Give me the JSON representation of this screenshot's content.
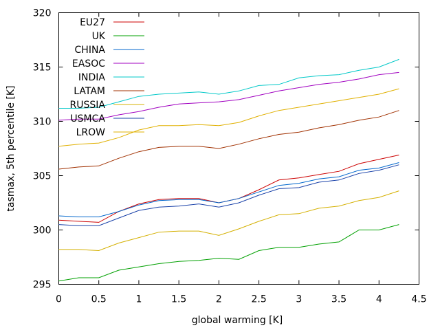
{
  "chart_data": {
    "type": "line",
    "xlabel": "global warming [K]",
    "ylabel": "tasmax, 5th percentile [K]",
    "xlim": [
      0,
      4.5
    ],
    "ylim": [
      295,
      320
    ],
    "xticks": [
      "0",
      "0.5",
      "1",
      "1.5",
      "2",
      "2.5",
      "3",
      "3.5",
      "4",
      "4.5"
    ],
    "yticks": [
      "295",
      "300",
      "305",
      "310",
      "315",
      "320"
    ],
    "grid": false,
    "legend_position": "top-left",
    "x": [
      0,
      0.25,
      0.5,
      0.75,
      1,
      1.25,
      1.5,
      1.75,
      2,
      2.25,
      2.5,
      2.75,
      3,
      3.25,
      3.5,
      3.75,
      4,
      4.25
    ],
    "series": [
      {
        "name": "EU27",
        "color": "#cc0000",
        "values": [
          300.9,
          300.8,
          300.7,
          301.7,
          302.4,
          302.8,
          302.9,
          302.9,
          302.5,
          302.9,
          303.7,
          304.6,
          304.8,
          305.1,
          305.4,
          306.1,
          306.5,
          306.9
        ]
      },
      {
        "name": "UK",
        "color": "#00a000",
        "values": [
          295.3,
          295.6,
          295.6,
          296.3,
          296.6,
          296.9,
          297.1,
          297.2,
          297.4,
          297.3,
          298.1,
          298.4,
          298.4,
          298.7,
          298.9,
          300.0,
          300.0,
          300.5
        ]
      },
      {
        "name": "CHINA",
        "color": "#0066cc",
        "values": [
          301.3,
          301.2,
          301.2,
          301.7,
          302.3,
          302.7,
          302.8,
          302.8,
          302.5,
          302.9,
          303.5,
          304.1,
          304.3,
          304.7,
          304.9,
          305.5,
          305.7,
          306.2
        ]
      },
      {
        "name": "EASOC",
        "color": "#a000c0",
        "values": [
          310.1,
          310.2,
          310.2,
          310.6,
          310.9,
          311.3,
          311.6,
          311.7,
          311.8,
          312.0,
          312.4,
          312.8,
          313.1,
          313.4,
          313.6,
          313.9,
          314.3,
          314.5
        ]
      },
      {
        "name": "INDIA",
        "color": "#00c8c8",
        "values": [
          311.2,
          311.2,
          311.3,
          311.8,
          312.3,
          312.5,
          312.6,
          312.7,
          312.5,
          312.8,
          313.3,
          313.4,
          314.0,
          314.2,
          314.3,
          314.7,
          315.0,
          315.7
        ]
      },
      {
        "name": "LATAM",
        "color": "#a03000",
        "values": [
          305.6,
          305.8,
          305.9,
          306.6,
          307.2,
          307.6,
          307.7,
          307.7,
          307.5,
          307.9,
          308.4,
          308.8,
          309.0,
          309.4,
          309.7,
          310.1,
          310.4,
          311.0
        ]
      },
      {
        "name": "RUSSIA",
        "color": "#d4b000",
        "values": [
          298.2,
          298.2,
          298.1,
          298.8,
          299.3,
          299.8,
          299.9,
          299.9,
          299.5,
          300.1,
          300.8,
          301.4,
          301.5,
          302.0,
          302.2,
          302.7,
          303.0,
          303.6
        ]
      },
      {
        "name": "USMCA",
        "color": "#1840a8",
        "values": [
          300.5,
          300.4,
          300.4,
          301.1,
          301.8,
          302.1,
          302.2,
          302.4,
          302.1,
          302.5,
          303.2,
          303.8,
          303.9,
          304.4,
          304.6,
          305.2,
          305.5,
          306.0
        ]
      },
      {
        "name": "LROW",
        "color": "#e0b000",
        "values": [
          307.7,
          307.9,
          308.0,
          308.5,
          309.2,
          309.6,
          309.6,
          309.7,
          309.6,
          309.9,
          310.5,
          311.0,
          311.3,
          311.6,
          311.9,
          312.2,
          312.5,
          313.0
        ]
      }
    ]
  }
}
